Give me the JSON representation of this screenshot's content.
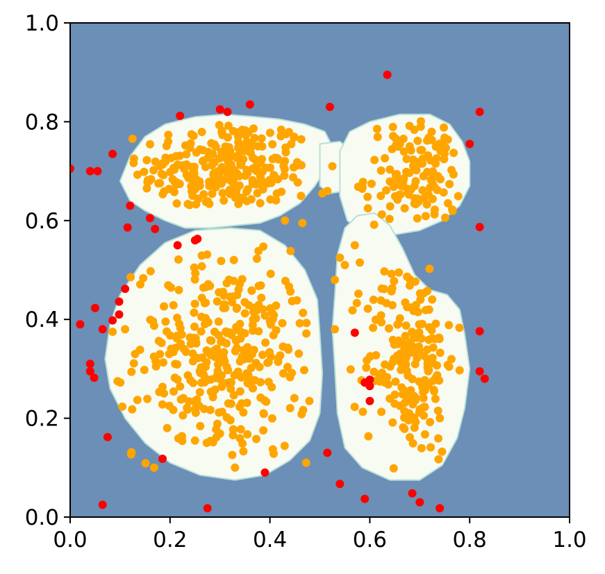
{
  "chart_data": {
    "type": "scatter",
    "title": "",
    "xlabel": "",
    "ylabel": "",
    "xlim": [
      0.0,
      1.0
    ],
    "ylim": [
      0.0,
      1.0
    ],
    "grid": false,
    "legend": "none",
    "x_ticks": [
      "0.0",
      "0.2",
      "0.4",
      "0.6",
      "0.8",
      "1.0"
    ],
    "y_ticks": [
      "0.0",
      "0.2",
      "0.4",
      "0.6",
      "0.8",
      "1.0"
    ],
    "colors": {
      "background_region": "#6b8fb7",
      "decision_region": "#f7fbf2",
      "region_edge": "#b9e0d8",
      "inlier_points": "#ffa500",
      "outlier_points": "#ff0000",
      "axes": "#000000"
    },
    "decision_regions": [
      {
        "name": "top-left blob",
        "polygon": [
          [
            0.1,
            0.68
          ],
          [
            0.12,
            0.73
          ],
          [
            0.15,
            0.77
          ],
          [
            0.19,
            0.795
          ],
          [
            0.25,
            0.81
          ],
          [
            0.31,
            0.815
          ],
          [
            0.37,
            0.81
          ],
          [
            0.42,
            0.805
          ],
          [
            0.47,
            0.795
          ],
          [
            0.51,
            0.78
          ],
          [
            0.525,
            0.75
          ],
          [
            0.515,
            0.71
          ],
          [
            0.49,
            0.67
          ],
          [
            0.46,
            0.635
          ],
          [
            0.42,
            0.61
          ],
          [
            0.38,
            0.595
          ],
          [
            0.33,
            0.59
          ],
          [
            0.28,
            0.585
          ],
          [
            0.23,
            0.585
          ],
          [
            0.19,
            0.6
          ],
          [
            0.15,
            0.62
          ],
          [
            0.12,
            0.64
          ]
        ]
      },
      {
        "name": "bridge",
        "polygon": [
          [
            0.5,
            0.755
          ],
          [
            0.54,
            0.76
          ],
          [
            0.56,
            0.745
          ],
          [
            0.565,
            0.695
          ],
          [
            0.55,
            0.66
          ],
          [
            0.52,
            0.655
          ],
          [
            0.5,
            0.67
          ]
        ]
      },
      {
        "name": "top-right blob",
        "polygon": [
          [
            0.54,
            0.74
          ],
          [
            0.56,
            0.78
          ],
          [
            0.6,
            0.8
          ],
          [
            0.66,
            0.815
          ],
          [
            0.72,
            0.815
          ],
          [
            0.76,
            0.795
          ],
          [
            0.785,
            0.76
          ],
          [
            0.8,
            0.72
          ],
          [
            0.8,
            0.67
          ],
          [
            0.78,
            0.63
          ],
          [
            0.745,
            0.6
          ],
          [
            0.7,
            0.58
          ],
          [
            0.64,
            0.57
          ],
          [
            0.59,
            0.575
          ],
          [
            0.555,
            0.6
          ],
          [
            0.54,
            0.65
          ]
        ]
      },
      {
        "name": "bottom-left blob",
        "polygon": [
          [
            0.07,
            0.32
          ],
          [
            0.08,
            0.39
          ],
          [
            0.1,
            0.45
          ],
          [
            0.14,
            0.51
          ],
          [
            0.19,
            0.555
          ],
          [
            0.25,
            0.58
          ],
          [
            0.32,
            0.585
          ],
          [
            0.38,
            0.58
          ],
          [
            0.43,
            0.55
          ],
          [
            0.47,
            0.5
          ],
          [
            0.495,
            0.44
          ],
          [
            0.5,
            0.37
          ],
          [
            0.505,
            0.29
          ],
          [
            0.5,
            0.21
          ],
          [
            0.48,
            0.155
          ],
          [
            0.44,
            0.115
          ],
          [
            0.39,
            0.085
          ],
          [
            0.33,
            0.075
          ],
          [
            0.26,
            0.085
          ],
          [
            0.2,
            0.11
          ],
          [
            0.15,
            0.15
          ],
          [
            0.11,
            0.2
          ],
          [
            0.08,
            0.26
          ]
        ]
      },
      {
        "name": "bottom-right blob",
        "polygon": [
          [
            0.53,
            0.45
          ],
          [
            0.535,
            0.53
          ],
          [
            0.55,
            0.585
          ],
          [
            0.575,
            0.61
          ],
          [
            0.61,
            0.615
          ],
          [
            0.64,
            0.59
          ],
          [
            0.665,
            0.545
          ],
          [
            0.69,
            0.49
          ],
          [
            0.72,
            0.46
          ],
          [
            0.755,
            0.45
          ],
          [
            0.78,
            0.42
          ],
          [
            0.79,
            0.37
          ],
          [
            0.8,
            0.3
          ],
          [
            0.79,
            0.22
          ],
          [
            0.775,
            0.16
          ],
          [
            0.745,
            0.105
          ],
          [
            0.7,
            0.075
          ],
          [
            0.64,
            0.075
          ],
          [
            0.585,
            0.1
          ],
          [
            0.55,
            0.14
          ],
          [
            0.535,
            0.21
          ],
          [
            0.53,
            0.3
          ],
          [
            0.525,
            0.38
          ]
        ]
      }
    ],
    "series": [
      {
        "color": "#ffa500",
        "marker_radius": 6,
        "clusters": [
          {
            "center": [
              0.31,
              0.7
            ],
            "spread": [
              0.085,
              0.055
            ],
            "n": 260,
            "clip": [
              [
                0.12,
                0.63
              ],
              [
                0.49,
                0.8
              ]
            ]
          },
          {
            "center": [
              0.69,
              0.69
            ],
            "spread": [
              0.05,
              0.055
            ],
            "n": 130,
            "clip": [
              [
                0.56,
                0.59
              ],
              [
                0.78,
                0.81
              ]
            ]
          },
          {
            "center": [
              0.31,
              0.32
            ],
            "spread": [
              0.09,
              0.1
            ],
            "n": 340,
            "clip": [
              [
                0.1,
                0.1
              ],
              [
                0.48,
                0.56
              ]
            ]
          },
          {
            "center": [
              0.68,
              0.32
            ],
            "spread": [
              0.045,
              0.1
            ],
            "n": 200,
            "clip": [
              [
                0.56,
                0.09
              ],
              [
                0.78,
                0.6
              ]
            ]
          }
        ],
        "points": [
          [
            0.525,
            0.71
          ],
          [
            0.515,
            0.66
          ],
          [
            0.505,
            0.655
          ],
          [
            0.465,
            0.595
          ],
          [
            0.43,
            0.6
          ],
          [
            0.54,
            0.525
          ],
          [
            0.55,
            0.51
          ],
          [
            0.53,
            0.48
          ],
          [
            0.57,
            0.55
          ],
          [
            0.58,
            0.515
          ],
          [
            0.095,
            0.275
          ],
          [
            0.085,
            0.375
          ],
          [
            0.11,
            0.38
          ],
          [
            0.13,
            0.33
          ],
          [
            0.53,
            0.38
          ]
        ]
      },
      {
        "color": "#ff0000",
        "marker_radius": 6,
        "points": [
          [
            0.0,
            0.705
          ],
          [
            0.04,
            0.7
          ],
          [
            0.055,
            0.7
          ],
          [
            0.085,
            0.735
          ],
          [
            0.22,
            0.812
          ],
          [
            0.3,
            0.825
          ],
          [
            0.315,
            0.82
          ],
          [
            0.36,
            0.835
          ],
          [
            0.52,
            0.83
          ],
          [
            0.635,
            0.895
          ],
          [
            0.82,
            0.82
          ],
          [
            0.8,
            0.755
          ],
          [
            0.82,
            0.587
          ],
          [
            0.12,
            0.63
          ],
          [
            0.115,
            0.586
          ],
          [
            0.16,
            0.605
          ],
          [
            0.17,
            0.583
          ],
          [
            0.215,
            0.55
          ],
          [
            0.25,
            0.56
          ],
          [
            0.255,
            0.563
          ],
          [
            0.11,
            0.462
          ],
          [
            0.098,
            0.436
          ],
          [
            0.05,
            0.423
          ],
          [
            0.098,
            0.41
          ],
          [
            0.085,
            0.398
          ],
          [
            0.065,
            0.38
          ],
          [
            0.02,
            0.39
          ],
          [
            0.04,
            0.31
          ],
          [
            0.04,
            0.295
          ],
          [
            0.048,
            0.282
          ],
          [
            0.57,
            0.373
          ],
          [
            0.59,
            0.272
          ],
          [
            0.6,
            0.278
          ],
          [
            0.6,
            0.265
          ],
          [
            0.6,
            0.235
          ],
          [
            0.82,
            0.376
          ],
          [
            0.82,
            0.295
          ],
          [
            0.83,
            0.28
          ],
          [
            0.075,
            0.162
          ],
          [
            0.185,
            0.118
          ],
          [
            0.39,
            0.09
          ],
          [
            0.515,
            0.13
          ],
          [
            0.54,
            0.067
          ],
          [
            0.59,
            0.037
          ],
          [
            0.685,
            0.048
          ],
          [
            0.7,
            0.03
          ],
          [
            0.74,
            0.018
          ],
          [
            0.065,
            0.025
          ],
          [
            0.275,
            0.018
          ]
        ]
      }
    ]
  }
}
